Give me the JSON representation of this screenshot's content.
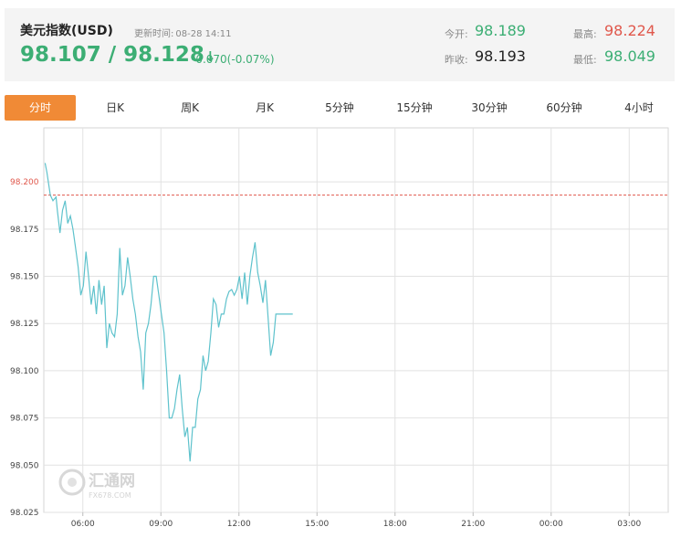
{
  "header": {
    "title": "美元指数(USD)",
    "update_label": "更新时间:",
    "update_time": "08-28 14:11",
    "price": "98.107 / 98.128",
    "arrow": "↓",
    "change": "-0.070(-0.07%)",
    "open_label": "今开:",
    "open_value": "98.189",
    "prev_close_label": "昨收:",
    "prev_close_value": "98.193",
    "high_label": "最高:",
    "high_value": "98.224",
    "low_label": "最低:",
    "low_value": "98.049"
  },
  "tabs": [
    {
      "label": "分时",
      "active": true
    },
    {
      "label": "日K",
      "active": false
    },
    {
      "label": "周K",
      "active": false
    },
    {
      "label": "月K",
      "active": false
    },
    {
      "label": "5分钟",
      "active": false
    },
    {
      "label": "15分钟",
      "active": false
    },
    {
      "label": "30分钟",
      "active": false
    },
    {
      "label": "60分钟",
      "active": false
    },
    {
      "label": "4小时",
      "active": false
    }
  ],
  "watermark": {
    "brand": "汇通网",
    "domain": "FX678.COM"
  },
  "colors": {
    "accent": "#f08a36",
    "line": "#5ec2cc",
    "up": "#e0584c",
    "down": "#3cae74",
    "ref_line": "#e0584c"
  },
  "chart_data": {
    "type": "line",
    "x_unit": "hours since 04:30",
    "x_ticks": [
      {
        "value": 1.5,
        "label": "06:00"
      },
      {
        "value": 4.5,
        "label": "09:00"
      },
      {
        "value": 7.5,
        "label": "12:00"
      },
      {
        "value": 10.5,
        "label": "15:00"
      },
      {
        "value": 13.5,
        "label": "18:00"
      },
      {
        "value": 16.5,
        "label": "21:00"
      },
      {
        "value": 19.5,
        "label": "00:00"
      },
      {
        "value": 22.5,
        "label": "03:00"
      }
    ],
    "xlim": [
      0,
      24
    ],
    "ylim": [
      98.025,
      98.2286
    ],
    "y_ticks": [
      {
        "value": 98.2,
        "label": "98.200",
        "highlight": true
      },
      {
        "value": 98.175,
        "label": "98.175"
      },
      {
        "value": 98.15,
        "label": "98.150"
      },
      {
        "value": 98.125,
        "label": "98.125"
      },
      {
        "value": 98.1,
        "label": "98.100"
      },
      {
        "value": 98.075,
        "label": "98.075"
      },
      {
        "value": 98.05,
        "label": "98.050"
      },
      {
        "value": 98.025,
        "label": "98.025"
      }
    ],
    "reference_line": 98.193,
    "grid": true,
    "series": [
      {
        "x": [
          0.05,
          0.12,
          0.25,
          0.35,
          0.47,
          0.52,
          0.62,
          0.72,
          0.82,
          0.92,
          1.02,
          1.12,
          1.22,
          1.32,
          1.42,
          1.52,
          1.62,
          1.72,
          1.82,
          1.92,
          2.02,
          2.12,
          2.22,
          2.32,
          2.42,
          2.52,
          2.62,
          2.72,
          2.82,
          2.92,
          3.02,
          3.12,
          3.22,
          3.32,
          3.42,
          3.52,
          3.62,
          3.72,
          3.82,
          3.92,
          4.02,
          4.12,
          4.22,
          4.32,
          4.42,
          4.52,
          4.62,
          4.72,
          4.82,
          4.92,
          5.02,
          5.12,
          5.22,
          5.32,
          5.42,
          5.52,
          5.62,
          5.72,
          5.82,
          5.92,
          6.02,
          6.12,
          6.22,
          6.32,
          6.42,
          6.52,
          6.62,
          6.72,
          6.82,
          6.92,
          7.02,
          7.12,
          7.22,
          7.32,
          7.42,
          7.52,
          7.62,
          7.72,
          7.82,
          7.92,
          8.02,
          8.12,
          8.22,
          8.32,
          8.42,
          8.52,
          8.62,
          8.72,
          8.82,
          8.92,
          9.02,
          9.12,
          9.22,
          9.32,
          9.42,
          9.52,
          9.57
        ],
        "y": [
          98.21,
          98.205,
          98.193,
          98.19,
          98.192,
          98.185,
          98.173,
          98.185,
          98.19,
          98.178,
          98.182,
          98.175,
          98.165,
          98.155,
          98.14,
          98.145,
          98.163,
          98.15,
          98.135,
          98.145,
          98.13,
          98.148,
          98.135,
          98.145,
          98.112,
          98.125,
          98.12,
          98.118,
          98.13,
          98.165,
          98.14,
          98.145,
          98.16,
          98.15,
          98.138,
          98.13,
          98.118,
          98.11,
          98.09,
          98.12,
          98.125,
          98.135,
          98.15,
          98.15,
          98.14,
          98.13,
          98.12,
          98.1,
          98.075,
          98.075,
          98.08,
          98.09,
          98.098,
          98.08,
          98.065,
          98.07,
          98.052,
          98.07,
          98.07,
          98.085,
          98.09,
          98.108,
          98.1,
          98.105,
          98.12,
          98.138,
          98.135,
          98.123,
          98.13,
          98.13,
          98.138,
          98.142,
          98.143,
          98.14,
          98.143,
          98.15,
          98.138,
          98.152,
          98.135,
          98.15,
          98.16,
          98.168,
          98.152,
          98.145,
          98.136,
          98.148,
          98.128,
          98.108,
          98.115,
          98.13,
          98.13,
          98.13,
          98.13,
          98.13,
          98.13,
          98.13,
          98.13
        ]
      }
    ]
  }
}
